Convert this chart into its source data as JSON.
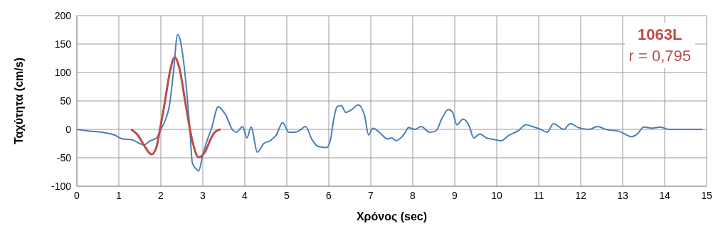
{
  "chart_data": {
    "type": "line",
    "xlabel": "Χρόνος (sec)",
    "ylabel": "Ταχύτητα (cm/s)",
    "xlim": [
      0,
      15
    ],
    "xticks": [
      0,
      1,
      2,
      3,
      4,
      5,
      6,
      7,
      8,
      9,
      10,
      11,
      12,
      13,
      14,
      15
    ],
    "ylim": [
      -100,
      200
    ],
    "yticks": [
      -100,
      -50,
      0,
      50,
      100,
      150,
      200
    ],
    "grid": true,
    "marker": "none",
    "line_style": "solid",
    "annotations": [
      "1063L",
      "r = 0,795"
    ],
    "series": [
      {
        "color": "#4a7ebb",
        "x": [
          0,
          0.3,
          0.6,
          0.9,
          1.1,
          1.3,
          1.5,
          1.6,
          1.75,
          1.9,
          2.0,
          2.1,
          2.2,
          2.3,
          2.4,
          2.45,
          2.6,
          2.7,
          2.75,
          2.85,
          2.9,
          3.0,
          3.1,
          3.2,
          3.37,
          3.45,
          3.55,
          3.7,
          3.8,
          3.95,
          4.05,
          4.15,
          4.3,
          4.45,
          4.6,
          4.75,
          4.9,
          5.05,
          5.2,
          5.3,
          5.45,
          5.6,
          5.75,
          5.95,
          6.05,
          6.1,
          6.2,
          6.3,
          6.4,
          6.55,
          6.7,
          6.85,
          6.95,
          7.05,
          7.2,
          7.3,
          7.4,
          7.5,
          7.6,
          7.8,
          7.9,
          8.05,
          8.2,
          8.4,
          8.55,
          8.7,
          8.85,
          8.95,
          9.05,
          9.2,
          9.35,
          9.45,
          9.6,
          9.75,
          9.95,
          10.1,
          10.3,
          10.5,
          10.7,
          10.85,
          11.05,
          11.2,
          11.35,
          11.6,
          11.75,
          11.95,
          12.2,
          12.4,
          12.6,
          12.9,
          13.1,
          13.2,
          13.35,
          13.5,
          13.7,
          13.9,
          14.1,
          14.4,
          14.9
        ],
        "values": [
          0,
          -3,
          -5,
          -10,
          -17,
          -18,
          -25,
          -27,
          -20,
          -15,
          0,
          15,
          40,
          100,
          167,
          160,
          80,
          -10,
          -59,
          -70,
          -73,
          -45,
          -20,
          0,
          40,
          35,
          25,
          0,
          -5,
          5,
          -15,
          4,
          -40,
          -25,
          -20,
          -10,
          12,
          -5,
          -5,
          -2,
          5,
          -18,
          -30,
          -32,
          -15,
          10,
          40,
          42,
          30,
          35,
          43,
          25,
          -10,
          2,
          -5,
          -12,
          -17,
          -15,
          -20,
          -8,
          3,
          0,
          5,
          -5,
          -3,
          20,
          35,
          30,
          8,
          18,
          5,
          -15,
          -8,
          -15,
          -18,
          -20,
          -10,
          -3,
          8,
          5,
          0,
          -5,
          10,
          0,
          10,
          3,
          0,
          5,
          0,
          -3,
          -10,
          -13,
          -8,
          4,
          2,
          4,
          0,
          0,
          0
        ]
      },
      {
        "color": "#be4b48",
        "x": [
          1.29,
          1.45,
          1.6,
          1.78,
          1.9,
          1.98,
          2.1,
          2.2,
          2.33,
          2.45,
          2.6,
          2.75,
          2.9,
          3.05,
          3.2,
          3.3,
          3.42
        ],
        "values": [
          0,
          -10,
          -28,
          -44,
          -30,
          0,
          50,
          95,
          127,
          105,
          40,
          -20,
          -49,
          -40,
          -15,
          -4,
          0
        ]
      }
    ]
  }
}
